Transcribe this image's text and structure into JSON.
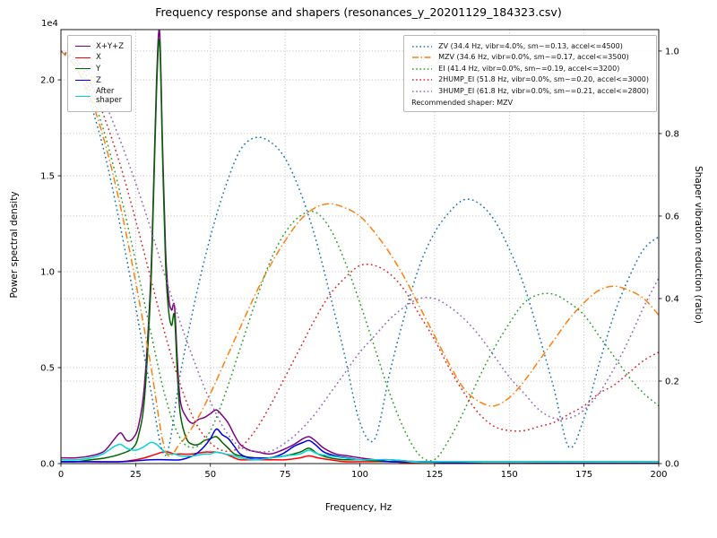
{
  "chart_data": {
    "type": "line",
    "title": "Frequency response and shapers (resonances_y_20201129_184323.csv)",
    "xlabel": "Frequency, Hz",
    "ylabel_left": "Power spectral density",
    "ylabel_right": "Shaper vibration reduction (ratio)",
    "offset_text": "1e4",
    "grid": true,
    "legend_left_position": "upper left",
    "legend_right_position": "upper right",
    "xlim": [
      0,
      200
    ],
    "ylim_left": [
      0,
      2.262
    ],
    "ylim_right": [
      0,
      1.052
    ],
    "xticks": {
      "values": [
        0,
        25,
        50,
        75,
        100,
        125,
        150,
        175,
        200
      ],
      "labels": [
        "0",
        "25",
        "50",
        "75",
        "100",
        "125",
        "150",
        "175",
        "200"
      ]
    },
    "yticks_left": {
      "values": [
        0,
        0.5,
        1.0,
        1.5,
        2.0
      ],
      "labels": [
        "0.0",
        "0.5",
        "1.0",
        "1.5",
        "2.0"
      ]
    },
    "yticks_right": {
      "values": [
        0,
        0.2,
        0.4,
        0.6,
        0.8,
        1.0
      ],
      "labels": [
        "0.0",
        "0.2",
        "0.4",
        "0.6",
        "0.8",
        "1.0"
      ]
    },
    "psd_units_multiplier": "1e4",
    "psd_series": [
      {
        "name": "X+Y+Z",
        "color": "#7f007f",
        "x": [
          0,
          5,
          10,
          14,
          16,
          18,
          20,
          22,
          24,
          26,
          28,
          30,
          31,
          32,
          33,
          34,
          35,
          36,
          37,
          38,
          39,
          40,
          42,
          44,
          46,
          48,
          50,
          52,
          54,
          56,
          58,
          60,
          63,
          66,
          70,
          74,
          78,
          81,
          83,
          85,
          88,
          92,
          96,
          100,
          105,
          110,
          120,
          140,
          160,
          180,
          200
        ],
        "y": [
          0.03,
          0.03,
          0.04,
          0.06,
          0.09,
          0.13,
          0.16,
          0.12,
          0.13,
          0.2,
          0.42,
          0.95,
          1.45,
          2.0,
          2.25,
          1.65,
          1.12,
          0.87,
          0.8,
          0.82,
          0.52,
          0.32,
          0.24,
          0.21,
          0.23,
          0.24,
          0.26,
          0.28,
          0.25,
          0.21,
          0.15,
          0.1,
          0.07,
          0.06,
          0.05,
          0.07,
          0.1,
          0.13,
          0.14,
          0.12,
          0.08,
          0.05,
          0.04,
          0.03,
          0.02,
          0.02,
          0.01,
          0.01,
          0.01,
          0.01,
          0.01
        ]
      },
      {
        "name": "X",
        "color": "#ff0000",
        "x": [
          0,
          10,
          20,
          25,
          28,
          30,
          32,
          34,
          36,
          38,
          40,
          44,
          48,
          50,
          52,
          55,
          58,
          60,
          65,
          70,
          75,
          80,
          83,
          86,
          90,
          95,
          100,
          110,
          120,
          140,
          160,
          180,
          200
        ],
        "y": [
          0.01,
          0.01,
          0.01,
          0.02,
          0.03,
          0.04,
          0.05,
          0.06,
          0.06,
          0.05,
          0.05,
          0.05,
          0.06,
          0.06,
          0.06,
          0.05,
          0.03,
          0.02,
          0.02,
          0.02,
          0.02,
          0.03,
          0.04,
          0.03,
          0.02,
          0.01,
          0.01,
          0.01,
          0.0,
          0.0,
          0.0,
          0.0,
          0.0
        ]
      },
      {
        "name": "Y",
        "color": "#006400",
        "x": [
          0,
          5,
          10,
          15,
          20,
          24,
          26,
          28,
          30,
          31,
          32,
          33,
          34,
          35,
          36,
          37,
          38,
          39,
          40,
          42,
          44,
          46,
          48,
          50,
          52,
          54,
          56,
          58,
          60,
          65,
          70,
          75,
          80,
          83,
          86,
          90,
          95,
          100,
          110,
          120,
          140,
          160,
          180,
          200
        ],
        "y": [
          0.01,
          0.01,
          0.02,
          0.03,
          0.05,
          0.08,
          0.15,
          0.35,
          0.9,
          1.4,
          1.95,
          2.2,
          1.6,
          1.05,
          0.8,
          0.72,
          0.77,
          0.45,
          0.25,
          0.13,
          0.1,
          0.1,
          0.12,
          0.13,
          0.14,
          0.11,
          0.08,
          0.05,
          0.04,
          0.03,
          0.03,
          0.04,
          0.06,
          0.08,
          0.05,
          0.03,
          0.02,
          0.02,
          0.01,
          0.01,
          0.0,
          0.0,
          0.0,
          0.0
        ]
      },
      {
        "name": "Z",
        "color": "#0000e0",
        "x": [
          0,
          10,
          20,
          30,
          35,
          40,
          44,
          46,
          48,
          50,
          52,
          54,
          56,
          58,
          60,
          63,
          66,
          70,
          74,
          78,
          81,
          83,
          85,
          88,
          92,
          96,
          100,
          105,
          110,
          120,
          140,
          160,
          180,
          200
        ],
        "y": [
          0.01,
          0.01,
          0.01,
          0.02,
          0.02,
          0.02,
          0.04,
          0.06,
          0.09,
          0.13,
          0.18,
          0.15,
          0.13,
          0.09,
          0.05,
          0.03,
          0.03,
          0.03,
          0.05,
          0.09,
          0.11,
          0.12,
          0.1,
          0.06,
          0.04,
          0.03,
          0.02,
          0.02,
          0.01,
          0.01,
          0.0,
          0.0,
          0.0,
          0.0
        ]
      },
      {
        "name": "After\nshaper",
        "color": "#00d5d5",
        "x": [
          0,
          5,
          10,
          14,
          16,
          18,
          20,
          22,
          25,
          28,
          30,
          32,
          34,
          36,
          38,
          40,
          44,
          48,
          50,
          52,
          55,
          58,
          60,
          65,
          70,
          75,
          80,
          83,
          86,
          90,
          95,
          100,
          110,
          120,
          140,
          160,
          180,
          200
        ],
        "y": [
          0.02,
          0.02,
          0.03,
          0.05,
          0.07,
          0.09,
          0.1,
          0.08,
          0.07,
          0.09,
          0.11,
          0.1,
          0.07,
          0.05,
          0.05,
          0.04,
          0.04,
          0.05,
          0.05,
          0.06,
          0.05,
          0.04,
          0.03,
          0.02,
          0.03,
          0.04,
          0.05,
          0.07,
          0.05,
          0.04,
          0.03,
          0.02,
          0.02,
          0.01,
          0.01,
          0.01,
          0.01,
          0.01
        ]
      }
    ],
    "shaper_x": [
      0,
      5,
      10,
      15,
      20,
      25,
      30,
      35,
      40,
      45,
      50,
      55,
      60,
      65,
      70,
      75,
      80,
      85,
      90,
      95,
      100,
      105,
      110,
      115,
      120,
      125,
      130,
      135,
      140,
      145,
      150,
      155,
      160,
      165,
      170,
      175,
      180,
      185,
      190,
      195,
      200
    ],
    "shaper_series": [
      {
        "name": "ZV",
        "label": "ZV (34.4 Hz, vibr=4.0%, sm~=0.13, accel<=4500)",
        "color": "#1f77b4",
        "dash": "dot",
        "y": [
          1.0,
          0.96,
          0.87,
          0.74,
          0.57,
          0.38,
          0.18,
          0.02,
          0.22,
          0.4,
          0.55,
          0.67,
          0.76,
          0.79,
          0.78,
          0.74,
          0.66,
          0.55,
          0.41,
          0.26,
          0.1,
          0.06,
          0.22,
          0.36,
          0.48,
          0.56,
          0.61,
          0.64,
          0.63,
          0.59,
          0.52,
          0.43,
          0.31,
          0.18,
          0.04,
          0.11,
          0.24,
          0.36,
          0.45,
          0.52,
          0.55
        ]
      },
      {
        "name": "MZV",
        "label": "MZV (34.6 Hz, vibr=0.0%, sm~=0.17, accel<=3500)",
        "color": "#ff7f0e",
        "dash": "dashdot",
        "y": [
          1.0,
          0.96,
          0.885,
          0.77,
          0.62,
          0.44,
          0.24,
          0.03,
          0.05,
          0.1,
          0.17,
          0.25,
          0.33,
          0.41,
          0.48,
          0.54,
          0.59,
          0.62,
          0.63,
          0.62,
          0.6,
          0.56,
          0.51,
          0.45,
          0.38,
          0.31,
          0.24,
          0.18,
          0.15,
          0.14,
          0.16,
          0.2,
          0.25,
          0.3,
          0.35,
          0.39,
          0.42,
          0.43,
          0.42,
          0.4,
          0.36
        ]
      },
      {
        "name": "EI",
        "label": "EI (41.4 Hz, vibr=0.0%, sm~=0.19, accel<=3200)",
        "color": "#2ca02c",
        "dash": "dot",
        "y": [
          1.0,
          0.97,
          0.9,
          0.79,
          0.65,
          0.49,
          0.32,
          0.16,
          0.06,
          0.04,
          0.08,
          0.17,
          0.28,
          0.39,
          0.49,
          0.56,
          0.6,
          0.61,
          0.57,
          0.49,
          0.39,
          0.28,
          0.17,
          0.08,
          0.02,
          0.01,
          0.06,
          0.13,
          0.21,
          0.28,
          0.34,
          0.39,
          0.41,
          0.41,
          0.39,
          0.36,
          0.31,
          0.26,
          0.21,
          0.17,
          0.14
        ]
      },
      {
        "name": "2HUMP_EI",
        "label": "2HUMP_EI (51.8 Hz, vibr=0.0%, sm~=0.20, accel<=3000)",
        "color": "#d62728",
        "dash": "dot",
        "y": [
          1.0,
          0.98,
          0.92,
          0.83,
          0.72,
          0.59,
          0.45,
          0.31,
          0.19,
          0.1,
          0.05,
          0.03,
          0.04,
          0.08,
          0.14,
          0.21,
          0.28,
          0.35,
          0.41,
          0.45,
          0.48,
          0.48,
          0.46,
          0.42,
          0.36,
          0.3,
          0.23,
          0.17,
          0.12,
          0.09,
          0.08,
          0.08,
          0.09,
          0.1,
          0.12,
          0.14,
          0.17,
          0.19,
          0.22,
          0.25,
          0.27
        ]
      },
      {
        "name": "3HUMP_EI",
        "label": "3HUMP_EI (61.8 Hz, vibr=0.0%, sm~=0.21, accel<=2800)",
        "color": "#9467bd",
        "dash": "dot",
        "y": [
          1.0,
          0.98,
          0.94,
          0.87,
          0.78,
          0.68,
          0.57,
          0.45,
          0.34,
          0.24,
          0.15,
          0.08,
          0.04,
          0.03,
          0.03,
          0.05,
          0.08,
          0.12,
          0.17,
          0.22,
          0.27,
          0.31,
          0.35,
          0.38,
          0.4,
          0.4,
          0.38,
          0.35,
          0.31,
          0.26,
          0.21,
          0.17,
          0.13,
          0.11,
          0.11,
          0.13,
          0.17,
          0.23,
          0.3,
          0.38,
          0.45
        ]
      }
    ],
    "recommendation": "Recommended shaper: MZV"
  }
}
